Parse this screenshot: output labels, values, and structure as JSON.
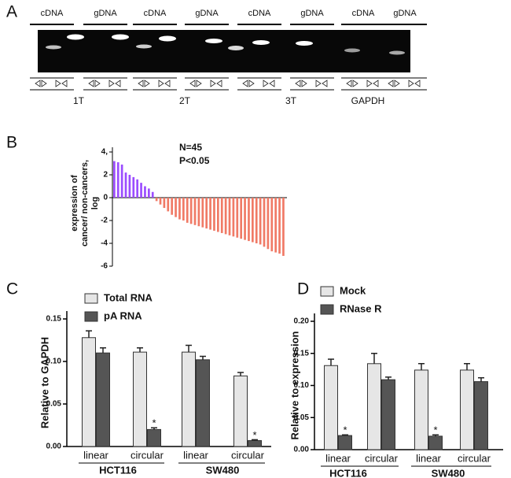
{
  "panels": [
    "A",
    "B",
    "C",
    "D"
  ],
  "gel": {
    "lanes": [
      "cDNA",
      "gDNA",
      "cDNA",
      "gDNA",
      "cDNA",
      "gDNA",
      "cDNA",
      "gDNA"
    ],
    "samples": [
      "1T",
      "2T",
      "3T",
      "GAPDH"
    ]
  },
  "chart_data": [
    {
      "type": "waterfall",
      "ylabel_lines": [
        "expression of",
        "cancer/ non-cancers,",
        "log"
      ],
      "annotations": [
        "N=45",
        "P<0.05"
      ],
      "categories": [
        null,
        null,
        null,
        null,
        null,
        null,
        null,
        null,
        null,
        null,
        null,
        null,
        null,
        null,
        null,
        null,
        null,
        null,
        null,
        null,
        null,
        null,
        null,
        null,
        null,
        null,
        null,
        null,
        null,
        null,
        null,
        null,
        null,
        null,
        null,
        null,
        null,
        null,
        null,
        null,
        null,
        null,
        null,
        null,
        null
      ],
      "values": [
        3.2,
        3.1,
        2.9,
        2.2,
        2.0,
        1.8,
        1.6,
        1.3,
        1.0,
        0.8,
        0.5,
        -0.3,
        -0.6,
        -0.9,
        -1.2,
        -1.5,
        -1.7,
        -1.9,
        -2.0,
        -2.2,
        -2.3,
        -2.4,
        -2.5,
        -2.6,
        -2.7,
        -2.8,
        -2.9,
        -3.0,
        -3.1,
        -3.2,
        -3.3,
        -3.4,
        -3.5,
        -3.6,
        -3.7,
        -3.8,
        -3.9,
        -4.0,
        -4.1,
        -4.3,
        -4.5,
        -4.7,
        -4.8,
        -4.9,
        -5.1
      ],
      "color_positive": "#9b4dff",
      "color_negative": "#f07a66",
      "ylim": [
        -6,
        4
      ],
      "yticks": [
        -6,
        -4,
        -2,
        0,
        2,
        {
          "value": 4,
          "label": "4,"
        }
      ]
    },
    {
      "type": "bar",
      "ylabel": "Relative to GAPDH",
      "categories": [
        "linear",
        "circular",
        "linear",
        "circular"
      ],
      "group_labels": [
        "HCT116",
        "SW480"
      ],
      "ylim": [
        0,
        0.15
      ],
      "yticks": [
        {
          "value": 0,
          "label": "0.00"
        },
        {
          "value": 0.05,
          "label": "0.05"
        },
        {
          "value": 0.1,
          "label": "0.10"
        },
        {
          "value": 0.15,
          "label": "0.15"
        }
      ],
      "series": [
        {
          "name": "Total RNA",
          "color": "#e6e6e6",
          "values": [
            0.128,
            0.111,
            0.111,
            0.083
          ],
          "errors": [
            0.008,
            0.005,
            0.008,
            0.004
          ],
          "marks": [
            null,
            null,
            null,
            null
          ]
        },
        {
          "name": "pA RNA",
          "color": "#555555",
          "values": [
            0.11,
            0.02,
            0.102,
            0.007
          ],
          "errors": [
            0.006,
            0.002,
            0.004,
            0.001
          ],
          "marks": [
            null,
            "*",
            null,
            "*"
          ]
        }
      ]
    },
    {
      "type": "bar",
      "ylabel": "Relative to expression",
      "categories": [
        "linear",
        "circular",
        "linear",
        "circular"
      ],
      "group_labels": [
        "HCT116",
        "SW480"
      ],
      "ylim": [
        0,
        0.2
      ],
      "yticks": [
        {
          "value": 0,
          "label": "0.00"
        },
        {
          "value": 0.05,
          "label": "0.05"
        },
        {
          "value": 0.1,
          "label": "0.10"
        },
        {
          "value": 0.15,
          "label": "0.15"
        },
        {
          "value": 0.2,
          "label": "0.20"
        }
      ],
      "series": [
        {
          "name": "Mock",
          "color": "#e6e6e6",
          "values": [
            0.131,
            0.134,
            0.124,
            0.124
          ],
          "errors": [
            0.01,
            0.016,
            0.01,
            0.01
          ],
          "marks": [
            null,
            null,
            null,
            null
          ]
        },
        {
          "name": "RNase R",
          "color": "#555555",
          "values": [
            0.022,
            0.109,
            0.021,
            0.106
          ],
          "errors": [
            0.001,
            0.004,
            0.002,
            0.006
          ],
          "marks": [
            "*",
            null,
            "*",
            null
          ]
        }
      ]
    }
  ]
}
